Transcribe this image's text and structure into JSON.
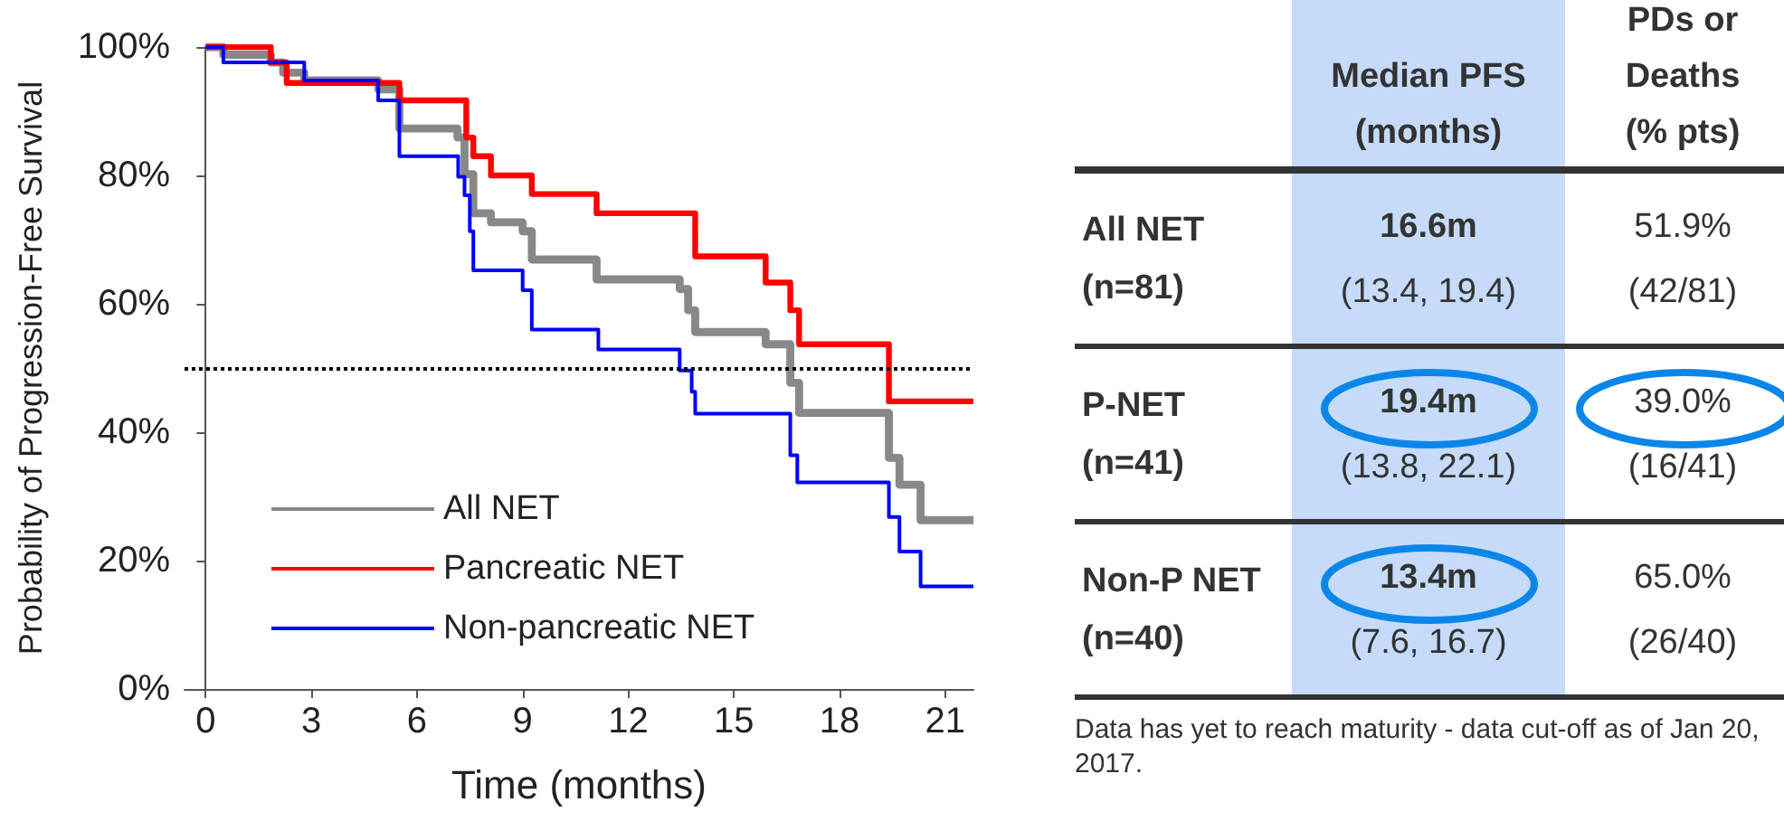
{
  "chart_data": [
    {
      "type": "step",
      "xlabel": "Time (months)",
      "ylabel": "Probability of Progression-Free Survival",
      "xlim": [
        -0.6,
        21.8
      ],
      "xticks": [
        0,
        3,
        6,
        9,
        12,
        15,
        18,
        21
      ],
      "ylim": [
        0,
        100
      ],
      "yticks": [
        {
          "value": 0,
          "label": "0%"
        },
        {
          "value": 20,
          "label": "20%"
        },
        {
          "value": 40,
          "label": "40%"
        },
        {
          "value": 60,
          "label": "60%"
        },
        {
          "value": 80,
          "label": "80%"
        },
        {
          "value": 100,
          "label": "100%"
        }
      ],
      "series": [
        {
          "name": "All NET",
          "color": "#888888",
          "x": [
            0,
            0.5,
            1.85,
            2.2,
            2.8,
            4.9,
            5.5,
            7.15,
            7.35,
            7.6,
            8.1,
            9.0,
            9.26,
            11.1,
            13.46,
            13.7,
            13.9,
            15.9,
            16.6,
            16.85,
            19.4,
            19.7,
            20.3,
            21.8
          ],
          "values": [
            100,
            98.8,
            97.6,
            96.0,
            94.8,
            93.4,
            87.3,
            85.9,
            80.2,
            74.1,
            72.7,
            71.3,
            66.9,
            63.8,
            62.3,
            59.0,
            55.6,
            53.7,
            47.7,
            43.0,
            36.0,
            31.8,
            26.3,
            26.3
          ]
        },
        {
          "name": "Pancreatic NET",
          "color": "#ff0000",
          "x": [
            0,
            1.85,
            2.3,
            5.5,
            7.4,
            7.6,
            8.1,
            9.26,
            11.1,
            13.9,
            15.9,
            16.6,
            16.85,
            19.4,
            21.8
          ],
          "values": [
            100,
            97.6,
            94.4,
            91.7,
            85.9,
            83.0,
            80.0,
            77.1,
            74.1,
            67.4,
            63.3,
            59.0,
            53.7,
            44.8,
            44.8
          ]
        },
        {
          "name": "Non-pancreatic NET",
          "color": "#0000ff",
          "x": [
            0,
            0.5,
            2.8,
            4.9,
            5.5,
            7.17,
            7.35,
            7.5,
            7.6,
            9.0,
            9.26,
            11.15,
            13.46,
            13.8,
            13.9,
            16.6,
            16.8,
            19.4,
            19.7,
            20.3,
            21.8
          ],
          "values": [
            100,
            97.6,
            94.8,
            91.7,
            83.0,
            79.8,
            76.9,
            71.3,
            65.2,
            62.1,
            56.0,
            52.9,
            49.6,
            46.3,
            42.9,
            36.4,
            32.2,
            26.8,
            21.4,
            16.0,
            16.0
          ]
        }
      ],
      "ref_lines": [
        {
          "axis": "y",
          "value": 50,
          "color": "#000000",
          "line_style": "dotted"
        }
      ],
      "legend": "bottom left",
      "grid": false,
      "marker": "none",
      "line_style": "solid"
    },
    {
      "type": "other",
      "categories": [
        "Median PFS (months)",
        "PDs or Deaths (% pts)"
      ],
      "y_categories": [
        "All NET (n=81)",
        "P-NET (n=41)",
        "Non-P NET (n=40)"
      ],
      "cell_labels": [
        [
          [
            "16.6m",
            "(13.4, 19.4)"
          ],
          [
            "51.9%",
            "(42/81)"
          ]
        ],
        [
          [
            "19.4m",
            "(13.8, 22.1)"
          ],
          [
            "39.0%",
            "(16/41)"
          ]
        ],
        [
          [
            "13.4m",
            "(7.6, 16.7)"
          ],
          [
            "65.0%",
            "(26/40)"
          ]
        ]
      ],
      "annotations": [
        "Data has yet to reach maturity - data cut-off as of Jan 20, 2017."
      ]
    }
  ]
}
